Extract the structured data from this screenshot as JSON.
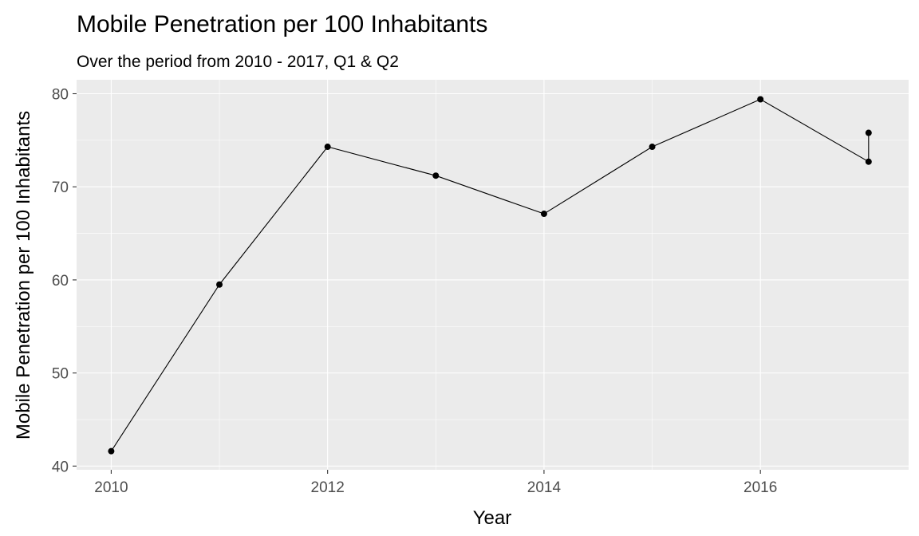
{
  "chart_data": {
    "type": "line",
    "title": "Mobile Penetration per 100 Inhabitants",
    "subtitle": "Over the period from 2010 - 2017, Q1 & Q2",
    "xlabel": "Year",
    "ylabel": "Mobile Penetration per 100 Inhabitants",
    "x_ticks": [
      "2010",
      "2012",
      "2014",
      "2016"
    ],
    "y_ticks": [
      "40",
      "50",
      "60",
      "70",
      "80"
    ],
    "xlim": [
      2009.68,
      2017.37
    ],
    "ylim": [
      39.6,
      81.5
    ],
    "grid": true,
    "legend": "none",
    "colors": {
      "panel": "#ebebeb",
      "grid": "#ffffff",
      "line": "#000000",
      "points": "#000000",
      "tick_text": "#4d4d4d"
    },
    "series": [
      {
        "points": [
          {
            "x": 2010,
            "y": 41.6
          },
          {
            "x": 2011,
            "y": 59.5
          },
          {
            "x": 2012,
            "y": 74.3
          },
          {
            "x": 2013,
            "y": 71.2
          },
          {
            "x": 2014,
            "y": 67.1
          },
          {
            "x": 2015,
            "y": 74.3
          },
          {
            "x": 2016,
            "y": 79.4
          },
          {
            "x": 2017,
            "y": 72.7
          },
          {
            "x": 2017,
            "y": 75.8
          }
        ]
      }
    ]
  }
}
